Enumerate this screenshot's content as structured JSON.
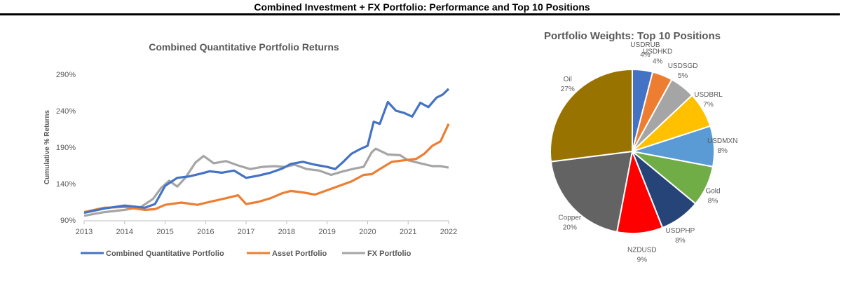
{
  "page_title": "Combined Investment + FX Portfolio: Performance and Top 10 Positions",
  "chart_data": [
    {
      "type": "line",
      "title": "Combined Quantitative Portfolio Returns",
      "xlabel": "",
      "ylabel": "Cumulative % Returns",
      "xlim": [
        2013,
        2022
      ],
      "ylim": [
        90,
        290
      ],
      "xticks": [
        "2013",
        "2014",
        "2015",
        "2016",
        "2017",
        "2018",
        "2019",
        "2020",
        "2021",
        "2022"
      ],
      "yticks": [
        "90%",
        "140%",
        "190%",
        "240%",
        "290%"
      ],
      "legend_position": "bottom",
      "series": [
        {
          "name": "Combined Quantitative Portfolio",
          "color": "#4472C4",
          "x": [
            2013.0,
            2013.5,
            2014.0,
            2014.5,
            2014.75,
            2015.0,
            2015.3,
            2015.6,
            2015.9,
            2016.1,
            2016.4,
            2016.7,
            2017.0,
            2017.3,
            2017.6,
            2017.9,
            2018.1,
            2018.4,
            2018.7,
            2019.0,
            2019.2,
            2019.4,
            2019.6,
            2019.8,
            2020.0,
            2020.15,
            2020.3,
            2020.5,
            2020.7,
            2020.9,
            2021.1,
            2021.3,
            2021.5,
            2021.7,
            2021.85,
            2022.0
          ],
          "values": [
            100,
            106,
            110,
            107,
            112,
            137,
            148,
            150,
            154,
            157,
            155,
            158,
            148,
            151,
            155,
            161,
            167,
            170,
            166,
            163,
            160,
            170,
            181,
            187,
            192,
            225,
            222,
            252,
            240,
            237,
            232,
            251,
            245,
            258,
            262,
            270
          ]
        },
        {
          "name": "Asset Portfolio",
          "color": "#ED7D31",
          "x": [
            2013.0,
            2013.5,
            2014.0,
            2014.5,
            2014.75,
            2015.0,
            2015.4,
            2015.8,
            2016.1,
            2016.5,
            2016.8,
            2017.0,
            2017.3,
            2017.6,
            2017.9,
            2018.1,
            2018.4,
            2018.7,
            2019.0,
            2019.3,
            2019.6,
            2019.9,
            2020.1,
            2020.3,
            2020.6,
            2020.9,
            2021.2,
            2021.4,
            2021.6,
            2021.8,
            2021.9,
            2022.0
          ],
          "values": [
            101,
            107,
            108,
            104,
            105,
            111,
            114,
            111,
            115,
            120,
            124,
            112,
            115,
            120,
            127,
            130,
            128,
            125,
            131,
            137,
            143,
            152,
            153,
            160,
            170,
            172,
            174,
            181,
            192,
            198,
            210,
            222
          ]
        },
        {
          "name": "FX Portfolio",
          "color": "#A5A5A5",
          "x": [
            2013.0,
            2013.5,
            2014.0,
            2014.4,
            2014.7,
            2014.9,
            2015.1,
            2015.3,
            2015.5,
            2015.75,
            2015.95,
            2016.2,
            2016.5,
            2016.8,
            2017.1,
            2017.4,
            2017.7,
            2017.95,
            2018.2,
            2018.5,
            2018.8,
            2019.1,
            2019.4,
            2019.7,
            2019.9,
            2020.1,
            2020.2,
            2020.5,
            2020.8,
            2021.0,
            2021.3,
            2021.6,
            2021.8,
            2022.0
          ],
          "values": [
            96,
            101,
            104,
            108,
            119,
            134,
            144,
            136,
            148,
            169,
            178,
            168,
            171,
            165,
            160,
            163,
            164,
            163,
            166,
            160,
            158,
            152,
            157,
            161,
            163,
            183,
            188,
            180,
            179,
            172,
            168,
            164,
            164,
            162
          ]
        }
      ]
    },
    {
      "type": "pie",
      "title": "Portfolio Weights: Top 10 Positions",
      "slices": [
        {
          "label": "USDRUB",
          "value": 4,
          "pct": "4%",
          "color": "#4472C4"
        },
        {
          "label": "USDHKD",
          "value": 4,
          "pct": "4%",
          "color": "#ED7D31"
        },
        {
          "label": "USDSGD",
          "value": 5,
          "pct": "5%",
          "color": "#A5A5A5"
        },
        {
          "label": "USDBRL",
          "value": 7,
          "pct": "7%",
          "color": "#FFC000"
        },
        {
          "label": "USDMXN",
          "value": 8,
          "pct": "8%",
          "color": "#5B9BD5"
        },
        {
          "label": "Gold",
          "value": 8,
          "pct": "8%",
          "color": "#70AD47"
        },
        {
          "label": "USDPHP",
          "value": 8,
          "pct": "8%",
          "color": "#264478"
        },
        {
          "label": "NZDUSD",
          "value": 9,
          "pct": "9%",
          "color": "#FF0000"
        },
        {
          "label": "Copper",
          "value": 20,
          "pct": "20%",
          "color": "#636363"
        },
        {
          "label": "Oil",
          "value": 27,
          "pct": "27%",
          "color": "#997300"
        }
      ]
    }
  ]
}
